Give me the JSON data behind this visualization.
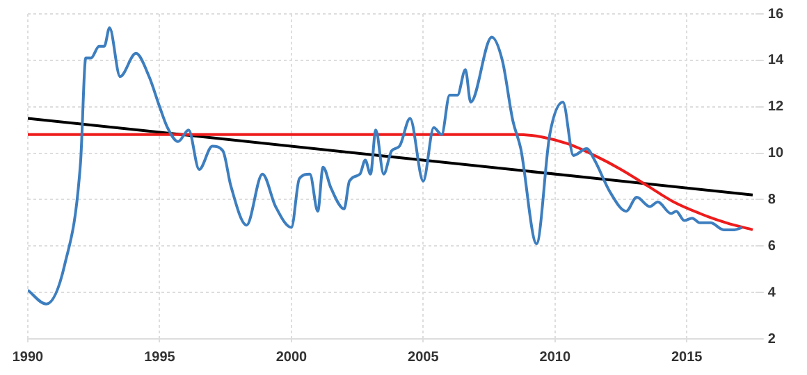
{
  "chart_data": {
    "type": "line",
    "xlim": [
      1990,
      2017.6
    ],
    "xticks": [
      1990,
      1995,
      2000,
      2005,
      2010,
      2015
    ],
    "ylim": [
      2,
      16
    ],
    "yticks": [
      2,
      4,
      6,
      8,
      10,
      12,
      14,
      16
    ],
    "grid": true,
    "legend": false,
    "marker": "none",
    "line_style": "solid",
    "series": [
      {
        "color": "#3d7ebf",
        "x": [
          1990,
          1990.7,
          1991.4,
          1992,
          1992.2,
          1992.4,
          1992.7,
          1992.9,
          1993.1,
          1993.5,
          1994.1,
          1994.6,
          1995,
          1995.3,
          1995.7,
          1996.1,
          1996.5,
          1997,
          1997.4,
          1997.7,
          1998.3,
          1998.9,
          1999.4,
          2000,
          2000.3,
          2000.7,
          2001,
          2001.2,
          2001.5,
          2002,
          2002.2,
          2002.6,
          2002.8,
          2003,
          2003.2,
          2003.5,
          2003.8,
          2004.1,
          2004.5,
          2005,
          2005.4,
          2005.7,
          2006,
          2006.3,
          2006.6,
          2006.8,
          2007.6,
          2008,
          2008.4,
          2008.7,
          2009.3,
          2009.8,
          2010.3,
          2010.7,
          2011.2,
          2011.5,
          2012.1,
          2012.7,
          2013.1,
          2013.6,
          2013.9,
          2014.4,
          2014.6,
          2014.9,
          2015.2,
          2015.5,
          2015.9,
          2016.4,
          2016.8,
          2017.1
        ],
        "values": [
          4.1,
          3.5,
          5.2,
          9.6,
          14.1,
          14.1,
          14.6,
          14.6,
          15.4,
          13.3,
          14.3,
          13.3,
          12.0,
          11.1,
          10.5,
          11.0,
          9.3,
          10.3,
          10.1,
          8.6,
          6.9,
          9.1,
          7.7,
          6.8,
          8.9,
          9.1,
          7.5,
          9.4,
          8.5,
          7.6,
          8.8,
          9.1,
          9.7,
          9.1,
          11.0,
          9.1,
          10.1,
          10.3,
          11.5,
          8.8,
          11.1,
          10.8,
          12.5,
          12.5,
          13.6,
          12.2,
          15.0,
          14.0,
          11.4,
          10.2,
          6.1,
          10.8,
          12.2,
          9.9,
          10.2,
          9.7,
          8.3,
          7.5,
          8.1,
          7.7,
          7.9,
          7.4,
          7.5,
          7.1,
          7.2,
          7.0,
          7.0,
          6.7,
          6.7,
          6.8
        ]
      },
      {
        "color": "#ee1c1c",
        "x": [
          1990,
          2008.5,
          2009.5,
          2010.5,
          2011.5,
          2012.5,
          2013.5,
          2014.5,
          2015.5,
          2016.5,
          2017.5
        ],
        "values": [
          10.8,
          10.8,
          10.7,
          10.4,
          9.9,
          9.3,
          8.6,
          7.9,
          7.4,
          7.0,
          6.7
        ]
      },
      {
        "color": "#000000",
        "x": [
          1990,
          2017.5
        ],
        "values": [
          11.5,
          8.2
        ]
      }
    ]
  }
}
